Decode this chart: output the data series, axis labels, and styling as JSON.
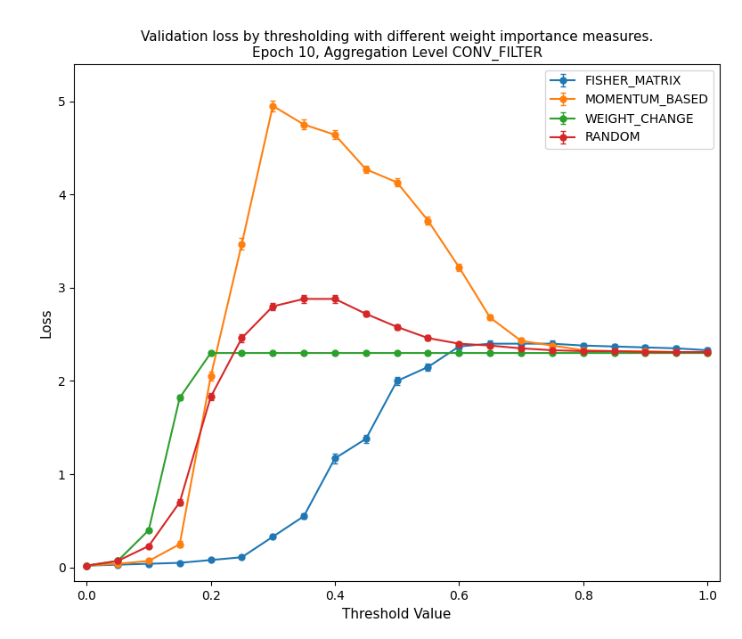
{
  "title": "Validation loss by thresholding with different weight importance measures.\nEpoch 10, Aggregation Level CONV_FILTER",
  "xlabel": "Threshold Value",
  "ylabel": "Loss",
  "series": {
    "FISHER_MATRIX": {
      "color": "#1f77b4",
      "x": [
        0.0,
        0.05,
        0.1,
        0.15,
        0.2,
        0.25,
        0.3,
        0.35,
        0.4,
        0.45,
        0.5,
        0.55,
        0.6,
        0.65,
        0.7,
        0.75,
        0.8,
        0.85,
        0.9,
        0.95,
        1.0
      ],
      "y": [
        0.02,
        0.03,
        0.04,
        0.05,
        0.08,
        0.11,
        0.33,
        0.55,
        1.17,
        1.38,
        2.0,
        2.15,
        2.37,
        2.4,
        2.4,
        2.4,
        2.38,
        2.37,
        2.36,
        2.35,
        2.33
      ],
      "yerr": [
        0.005,
        0.005,
        0.005,
        0.005,
        0.01,
        0.01,
        0.02,
        0.03,
        0.05,
        0.04,
        0.04,
        0.04,
        0.03,
        0.03,
        0.03,
        0.03,
        0.03,
        0.03,
        0.03,
        0.03,
        0.03
      ]
    },
    "MOMENTUM_BASED": {
      "color": "#ff7f0e",
      "x": [
        0.0,
        0.05,
        0.1,
        0.15,
        0.2,
        0.25,
        0.3,
        0.35,
        0.4,
        0.45,
        0.5,
        0.55,
        0.6,
        0.65,
        0.7,
        0.75,
        0.8,
        0.85,
        0.9,
        0.95,
        1.0
      ],
      "y": [
        0.02,
        0.04,
        0.07,
        0.25,
        2.05,
        3.47,
        4.95,
        4.75,
        4.64,
        4.27,
        4.13,
        3.72,
        3.22,
        2.68,
        2.43,
        2.38,
        2.33,
        2.32,
        2.32,
        2.31,
        2.3
      ],
      "yerr": [
        0.005,
        0.01,
        0.01,
        0.03,
        0.05,
        0.06,
        0.06,
        0.05,
        0.05,
        0.04,
        0.04,
        0.04,
        0.04,
        0.03,
        0.03,
        0.03,
        0.02,
        0.02,
        0.02,
        0.02,
        0.02
      ]
    },
    "WEIGHT_CHANGE": {
      "color": "#2ca02c",
      "x": [
        0.0,
        0.05,
        0.1,
        0.15,
        0.2,
        0.25,
        0.3,
        0.35,
        0.4,
        0.45,
        0.5,
        0.55,
        0.6,
        0.65,
        0.7,
        0.75,
        0.8,
        0.85,
        0.9,
        0.95,
        1.0
      ],
      "y": [
        0.02,
        0.07,
        0.4,
        1.82,
        2.3,
        2.3,
        2.3,
        2.3,
        2.3,
        2.3,
        2.3,
        2.3,
        2.3,
        2.3,
        2.3,
        2.3,
        2.3,
        2.3,
        2.3,
        2.3,
        2.3
      ],
      "yerr": [
        0.005,
        0.01,
        0.02,
        0.03,
        0.02,
        0.02,
        0.02,
        0.02,
        0.02,
        0.02,
        0.02,
        0.02,
        0.02,
        0.02,
        0.02,
        0.02,
        0.02,
        0.02,
        0.02,
        0.02,
        0.02
      ]
    },
    "RANDOM": {
      "color": "#d62728",
      "x": [
        0.0,
        0.05,
        0.1,
        0.15,
        0.2,
        0.25,
        0.3,
        0.35,
        0.4,
        0.45,
        0.5,
        0.55,
        0.6,
        0.65,
        0.7,
        0.75,
        0.8,
        0.85,
        0.9,
        0.95,
        1.0
      ],
      "y": [
        0.02,
        0.07,
        0.23,
        0.7,
        1.83,
        2.46,
        2.8,
        2.88,
        2.88,
        2.72,
        2.58,
        2.46,
        2.4,
        2.38,
        2.35,
        2.33,
        2.32,
        2.32,
        2.31,
        2.31,
        2.31
      ],
      "yerr": [
        0.005,
        0.01,
        0.02,
        0.03,
        0.04,
        0.04,
        0.04,
        0.04,
        0.04,
        0.03,
        0.03,
        0.03,
        0.02,
        0.02,
        0.02,
        0.02,
        0.02,
        0.02,
        0.02,
        0.02,
        0.02
      ]
    }
  },
  "xlim": [
    -0.02,
    1.02
  ],
  "ylim": [
    -0.15,
    5.4
  ],
  "xticks": [
    0.0,
    0.2,
    0.4,
    0.6,
    0.8,
    1.0
  ],
  "yticks": [
    0,
    1,
    2,
    3,
    4,
    5
  ],
  "legend_order": [
    "FISHER_MATRIX",
    "MOMENTUM_BASED",
    "WEIGHT_CHANGE",
    "RANDOM"
  ],
  "figsize": [
    8.33,
    7.17
  ],
  "dpi": 100,
  "subplot_adjust": [
    0.1,
    0.09,
    0.97,
    0.9
  ]
}
